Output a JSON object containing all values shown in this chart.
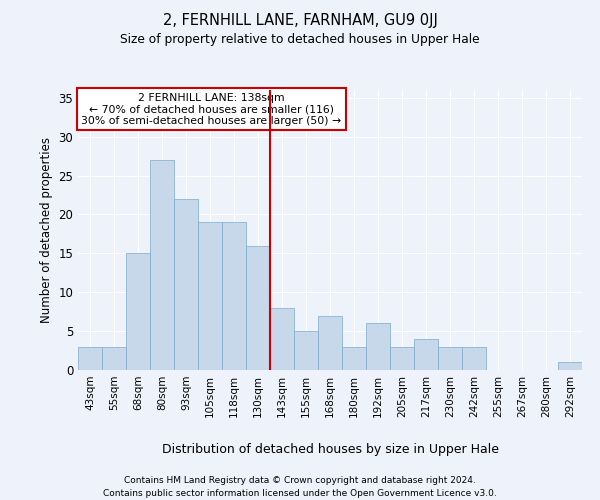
{
  "title": "2, FERNHILL LANE, FARNHAM, GU9 0JJ",
  "subtitle": "Size of property relative to detached houses in Upper Hale",
  "xlabel": "Distribution of detached houses by size in Upper Hale",
  "ylabel": "Number of detached properties",
  "categories": [
    "43sqm",
    "55sqm",
    "68sqm",
    "80sqm",
    "93sqm",
    "105sqm",
    "118sqm",
    "130sqm",
    "143sqm",
    "155sqm",
    "168sqm",
    "180sqm",
    "192sqm",
    "205sqm",
    "217sqm",
    "230sqm",
    "242sqm",
    "255sqm",
    "267sqm",
    "280sqm",
    "292sqm"
  ],
  "values": [
    3,
    3,
    15,
    27,
    22,
    19,
    19,
    16,
    8,
    5,
    7,
    3,
    6,
    3,
    4,
    3,
    3,
    0,
    0,
    0,
    1
  ],
  "bar_color": "#c8d8eb",
  "bar_edge_color": "#7aabcc",
  "background_color": "#eef2fa",
  "grid_color": "#ffffff",
  "red_line_x": 7.5,
  "annotation_text": "2 FERNHILL LANE: 138sqm\n← 70% of detached houses are smaller (116)\n30% of semi-detached houses are larger (50) →",
  "annotation_box_color": "#ffffff",
  "annotation_box_edge_color": "#cc0000",
  "ylim": [
    0,
    36
  ],
  "yticks": [
    0,
    5,
    10,
    15,
    20,
    25,
    30,
    35
  ],
  "footer1": "Contains HM Land Registry data © Crown copyright and database right 2024.",
  "footer2": "Contains public sector information licensed under the Open Government Licence v3.0."
}
